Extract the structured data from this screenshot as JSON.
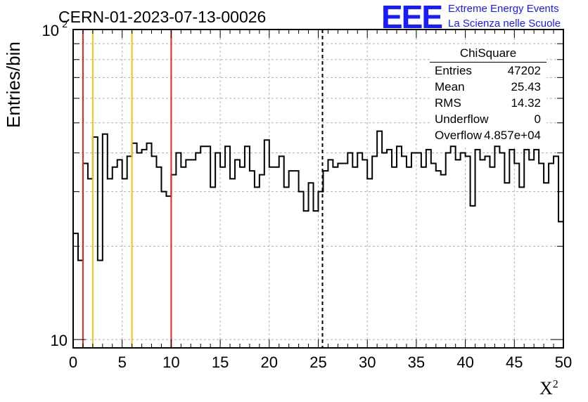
{
  "header": {
    "run_title": "CERN-01-2023-07-13-00026",
    "logo_text": "EEE",
    "logo_sub1": "Extreme Energy Events",
    "logo_sub2": "La Scienza nelle Scuole"
  },
  "axes": {
    "ylabel": "Entries/bin",
    "xlabel_base": "X",
    "xlabel_sup": "2"
  },
  "stats_box": {
    "title": "ChiSquare",
    "rows": [
      {
        "key": "Entries",
        "value": "47202"
      },
      {
        "key": "Mean",
        "value": "25.43"
      },
      {
        "key": "RMS",
        "value": "14.32"
      },
      {
        "key": "Underflow",
        "value": "0"
      },
      {
        "key": "Overflow",
        "value": "4.857e+04"
      }
    ]
  },
  "colors": {
    "frame": "#000000",
    "histogram": "#000000",
    "grid": "#b0b0b0",
    "red_line": "#e8261c",
    "yellow_line": "#f2c21e",
    "dashed_line": "#000000",
    "logo_blue": "#1a1aff"
  },
  "chart_data": {
    "type": "histogram",
    "title": "CERN-01-2023-07-13-00026",
    "xlabel": "X²",
    "ylabel": "Entries/bin",
    "xlim": [
      0,
      50
    ],
    "ylim": [
      9.4,
      100
    ],
    "ylog": true,
    "grid": true,
    "bin_width": 0.5,
    "x_ticks": [
      "0",
      "5",
      "10",
      "15",
      "20",
      "25",
      "30",
      "35",
      "40",
      "45",
      "50"
    ],
    "y_ticks": [
      {
        "value": 10,
        "label": "10"
      },
      {
        "value": 100,
        "label": "10",
        "sup": "2"
      }
    ],
    "values": [
      22,
      18,
      37,
      33,
      45,
      18,
      46,
      33,
      36,
      38,
      33,
      39,
      43,
      40,
      41,
      43,
      39,
      36,
      30,
      29,
      34,
      40,
      36,
      38,
      38,
      40,
      42,
      42,
      31,
      40,
      36,
      42,
      33,
      38,
      36,
      42,
      35,
      31,
      34,
      44,
      36,
      36,
      39,
      31,
      35,
      35,
      30,
      26,
      32,
      26,
      30,
      35,
      38,
      36,
      37,
      37,
      40,
      36,
      40,
      38,
      33,
      39,
      47,
      40,
      41,
      36,
      42,
      39,
      36,
      40,
      40,
      36,
      41,
      37,
      35,
      34,
      40,
      42,
      38,
      40,
      39,
      27,
      41,
      38,
      39,
      36,
      42,
      40,
      32,
      41,
      37,
      31,
      41,
      38,
      41,
      37,
      32,
      37,
      39,
      24
    ],
    "reference_lines": [
      {
        "x": 1,
        "color": "red",
        "style": "solid"
      },
      {
        "x": 2,
        "color": "yellow",
        "style": "solid"
      },
      {
        "x": 6,
        "color": "yellow",
        "style": "solid"
      },
      {
        "x": 10,
        "color": "red",
        "style": "solid"
      },
      {
        "x": 25.43,
        "color": "black",
        "style": "dashed"
      }
    ]
  }
}
